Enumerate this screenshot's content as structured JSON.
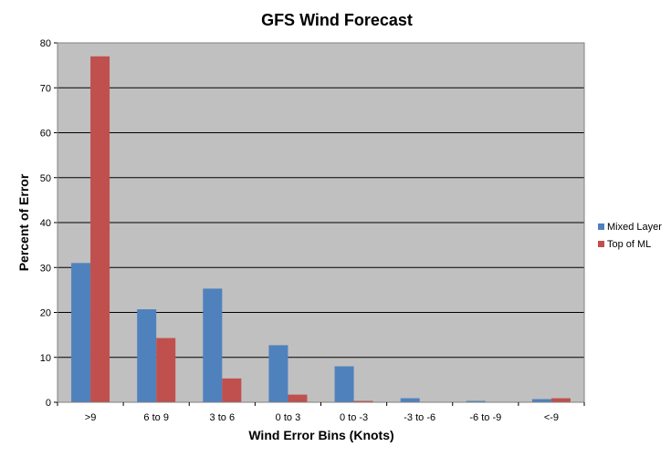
{
  "colors": {
    "plot_background": "#c0c0c0",
    "grid": "#000000",
    "series_mixed_layer": "#4f81bd",
    "series_top_of_ml": "#c0504d"
  },
  "chart_data": {
    "type": "bar",
    "title": "GFS Wind Forecast",
    "xlabel": "Wind Error Bins (Knots)",
    "ylabel": "Percent of Error",
    "categories": [
      ">9",
      "6 to 9",
      "3 to 6",
      "0 to 3",
      "0 to -3",
      "-3 to -6",
      "-6 to -9",
      "<-9"
    ],
    "series": [
      {
        "name": "Mixed Layer",
        "values": [
          31,
          20.7,
          25.3,
          12.7,
          8.0,
          0.9,
          0.3,
          0.7
        ]
      },
      {
        "name": "Top of ML",
        "values": [
          77,
          14.3,
          5.3,
          1.7,
          0.3,
          0,
          0,
          0.9
        ]
      }
    ],
    "ylim": [
      0,
      80
    ],
    "yticks": [
      0,
      10,
      20,
      30,
      40,
      50,
      60,
      70,
      80
    ],
    "grid": true,
    "legend_position": "right"
  }
}
